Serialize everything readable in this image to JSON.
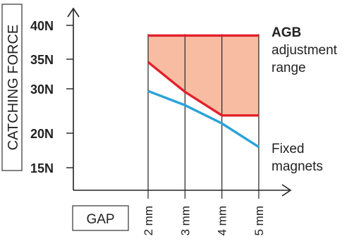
{
  "chart_data": {
    "type": "line",
    "ylabel": "CATCHING FORCE",
    "xlabel": "GAP",
    "x": [
      2,
      3,
      4,
      5
    ],
    "x_tick_labels": [
      "2 mm",
      "3 mm",
      "4 mm",
      "5 mm"
    ],
    "y_tick_values": [
      15,
      20,
      30,
      35,
      40
    ],
    "y_tick_labels": [
      "15N",
      "20N",
      "30N",
      "35N",
      "40N"
    ],
    "grid": "vertical lines at x ticks within the shaded region",
    "series": [
      {
        "label_lines": [
          "Fixed",
          "magnets"
        ],
        "color": "#29a3d8",
        "points": [
          [
            2,
            29.5
          ],
          [
            3,
            26.3
          ],
          [
            4,
            22.2
          ],
          [
            5,
            18
          ]
        ]
      },
      {
        "color": "#e3202a",
        "points": [
          [
            2,
            34.5
          ],
          [
            3,
            29.3
          ],
          [
            4,
            24
          ],
          [
            5,
            24
          ]
        ]
      },
      {
        "color": "#e3202a",
        "points": [
          [
            2,
            38.5
          ],
          [
            5,
            38.5
          ]
        ]
      }
    ],
    "band": {
      "fill": "#f8bca3",
      "label_title": "AGB",
      "label_lines": [
        "adjustment",
        "range"
      ]
    }
  }
}
